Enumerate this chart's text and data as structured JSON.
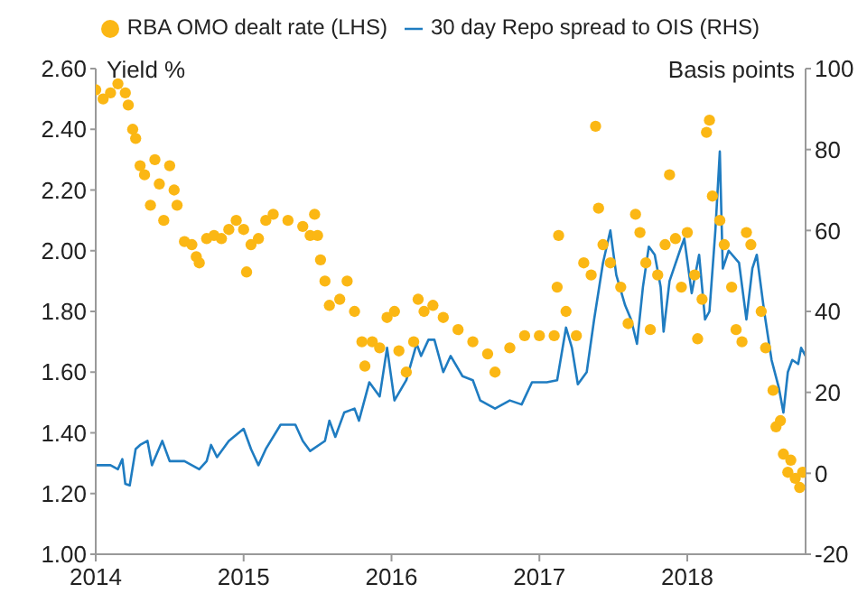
{
  "chart_data": {
    "type": "scatter",
    "xlim": [
      2014,
      2018.8
    ],
    "xticks": [
      2014,
      2015,
      2016,
      2017,
      2018
    ],
    "ylim": [
      1.0,
      2.6
    ],
    "yticks": [
      {
        "value": 1.0,
        "label": "1.00"
      },
      {
        "value": 1.2,
        "label": "1.20"
      },
      {
        "value": 1.4,
        "label": "1.40"
      },
      {
        "value": 1.6,
        "label": "1.60"
      },
      {
        "value": 1.8,
        "label": "1.80"
      },
      {
        "value": 2.0,
        "label": "2.00"
      },
      {
        "value": 2.2,
        "label": "2.20"
      },
      {
        "value": 2.4,
        "label": "2.40"
      },
      {
        "value": 2.6,
        "label": "2.60"
      }
    ],
    "y2lim": [
      -20,
      100
    ],
    "y2ticks": [
      -20,
      0,
      20,
      40,
      60,
      80,
      100
    ],
    "ylabel": "Yield %",
    "y2label": "Basis points",
    "legend": "top",
    "grid": false,
    "series": [
      {
        "name": "RBA OMO dealt rate (LHS)",
        "type": "scatter",
        "marker": "circle",
        "color": "#fbb714",
        "x": [
          2014.0,
          2014.05,
          2014.1,
          2014.15,
          2014.2,
          2014.22,
          2014.25,
          2014.27,
          2014.3,
          2014.33,
          2014.37,
          2014.4,
          2014.43,
          2014.46,
          2014.5,
          2014.53,
          2014.55,
          2014.6,
          2014.65,
          2014.68,
          2014.7,
          2014.75,
          2014.8,
          2014.85,
          2014.9,
          2014.95,
          2015.0,
          2015.02,
          2015.05,
          2015.1,
          2015.15,
          2015.2,
          2015.3,
          2015.4,
          2015.45,
          2015.48,
          2015.5,
          2015.52,
          2015.55,
          2015.58,
          2015.65,
          2015.7,
          2015.75,
          2015.8,
          2015.82,
          2015.87,
          2015.92,
          2015.97,
          2016.02,
          2016.05,
          2016.1,
          2016.15,
          2016.18,
          2016.22,
          2016.28,
          2016.35,
          2016.45,
          2016.55,
          2016.65,
          2016.7,
          2016.8,
          2016.9,
          2017.0,
          2017.1,
          2017.12,
          2017.13,
          2017.18,
          2017.25,
          2017.3,
          2017.35,
          2017.38,
          2017.4,
          2017.43,
          2017.48,
          2017.55,
          2017.6,
          2017.65,
          2017.68,
          2017.72,
          2017.75,
          2017.8,
          2017.85,
          2017.88,
          2017.92,
          2017.96,
          2018.0,
          2018.05,
          2018.07,
          2018.1,
          2018.13,
          2018.15,
          2018.17,
          2018.22,
          2018.25,
          2018.3,
          2018.33,
          2018.37,
          2018.4,
          2018.43,
          2018.5,
          2018.53,
          2018.58,
          2018.6,
          2018.63,
          2018.65,
          2018.68,
          2018.7,
          2018.73,
          2018.76,
          2018.78
        ],
        "values": [
          2.53,
          2.5,
          2.52,
          2.55,
          2.52,
          2.48,
          2.4,
          2.37,
          2.28,
          2.25,
          2.15,
          2.3,
          2.22,
          2.1,
          2.28,
          2.2,
          2.15,
          2.03,
          2.02,
          1.98,
          1.96,
          2.04,
          2.05,
          2.04,
          2.07,
          2.1,
          2.07,
          1.93,
          2.02,
          2.04,
          2.1,
          2.12,
          2.1,
          2.08,
          2.05,
          2.12,
          2.05,
          1.97,
          1.9,
          1.82,
          1.84,
          1.9,
          1.8,
          1.7,
          1.62,
          1.7,
          1.68,
          1.78,
          1.8,
          1.67,
          1.6,
          1.7,
          1.84,
          1.8,
          1.82,
          1.78,
          1.74,
          1.7,
          1.66,
          1.6,
          1.68,
          1.72,
          1.72,
          1.72,
          1.88,
          2.05,
          1.8,
          1.72,
          1.96,
          1.92,
          2.41,
          2.14,
          2.02,
          1.96,
          1.88,
          1.76,
          2.12,
          2.06,
          1.96,
          1.74,
          1.92,
          2.02,
          2.25,
          2.04,
          1.88,
          2.06,
          1.92,
          1.71,
          1.84,
          2.39,
          2.43,
          2.18,
          2.1,
          2.02,
          1.88,
          1.74,
          1.7,
          2.06,
          2.02,
          1.8,
          1.68,
          1.54,
          1.42,
          1.44,
          1.33,
          1.27,
          1.31,
          1.25,
          1.22,
          1.27
        ]
      },
      {
        "name": "30 day Repo spread to OIS (RHS)",
        "type": "line",
        "axis": "y2",
        "color": "#1f7cc1",
        "x": [
          2014.0,
          2014.1,
          2014.15,
          2014.18,
          2014.2,
          2014.23,
          2014.27,
          2014.3,
          2014.35,
          2014.38,
          2014.45,
          2014.5,
          2014.6,
          2014.7,
          2014.75,
          2014.78,
          2014.82,
          2014.9,
          2015.0,
          2015.05,
          2015.1,
          2015.15,
          2015.25,
          2015.35,
          2015.4,
          2015.45,
          2015.55,
          2015.58,
          2015.62,
          2015.68,
          2015.75,
          2015.78,
          2015.85,
          2015.92,
          2015.97,
          2016.02,
          2016.1,
          2016.17,
          2016.2,
          2016.25,
          2016.29,
          2016.35,
          2016.4,
          2016.48,
          2016.55,
          2016.6,
          2016.7,
          2016.8,
          2016.88,
          2016.95,
          2017.05,
          2017.12,
          2017.18,
          2017.22,
          2017.26,
          2017.32,
          2017.37,
          2017.43,
          2017.48,
          2017.52,
          2017.58,
          2017.62,
          2017.66,
          2017.7,
          2017.74,
          2017.78,
          2017.82,
          2017.84,
          2017.88,
          2017.95,
          2017.98,
          2018.03,
          2018.08,
          2018.12,
          2018.15,
          2018.19,
          2018.22,
          2018.24,
          2018.28,
          2018.35,
          2018.4,
          2018.44,
          2018.47,
          2018.52,
          2018.57,
          2018.62,
          2018.65,
          2018.68,
          2018.71,
          2018.75,
          2018.77,
          2018.8
        ],
        "values": [
          2,
          2,
          1,
          3.5,
          -2.6,
          -3,
          6,
          7,
          8,
          2,
          8,
          3,
          3,
          1,
          3,
          7,
          4,
          8,
          11,
          6,
          2,
          6,
          12,
          12,
          8,
          5.5,
          8,
          13,
          9,
          15,
          16,
          13,
          22.5,
          19,
          31,
          18,
          23,
          32,
          29,
          33,
          33,
          25,
          29,
          24,
          23,
          18,
          16,
          18,
          17,
          22.5,
          22.5,
          23,
          36,
          31,
          22,
          25,
          38,
          52,
          60,
          49,
          41.5,
          38,
          32,
          46,
          56,
          54,
          46,
          35,
          47.5,
          55,
          58,
          44.5,
          54,
          38,
          40,
          60,
          79.5,
          50.6,
          55,
          52,
          38,
          50.6,
          54,
          40,
          28,
          21,
          15,
          25,
          28,
          27,
          31,
          29
        ]
      }
    ]
  }
}
